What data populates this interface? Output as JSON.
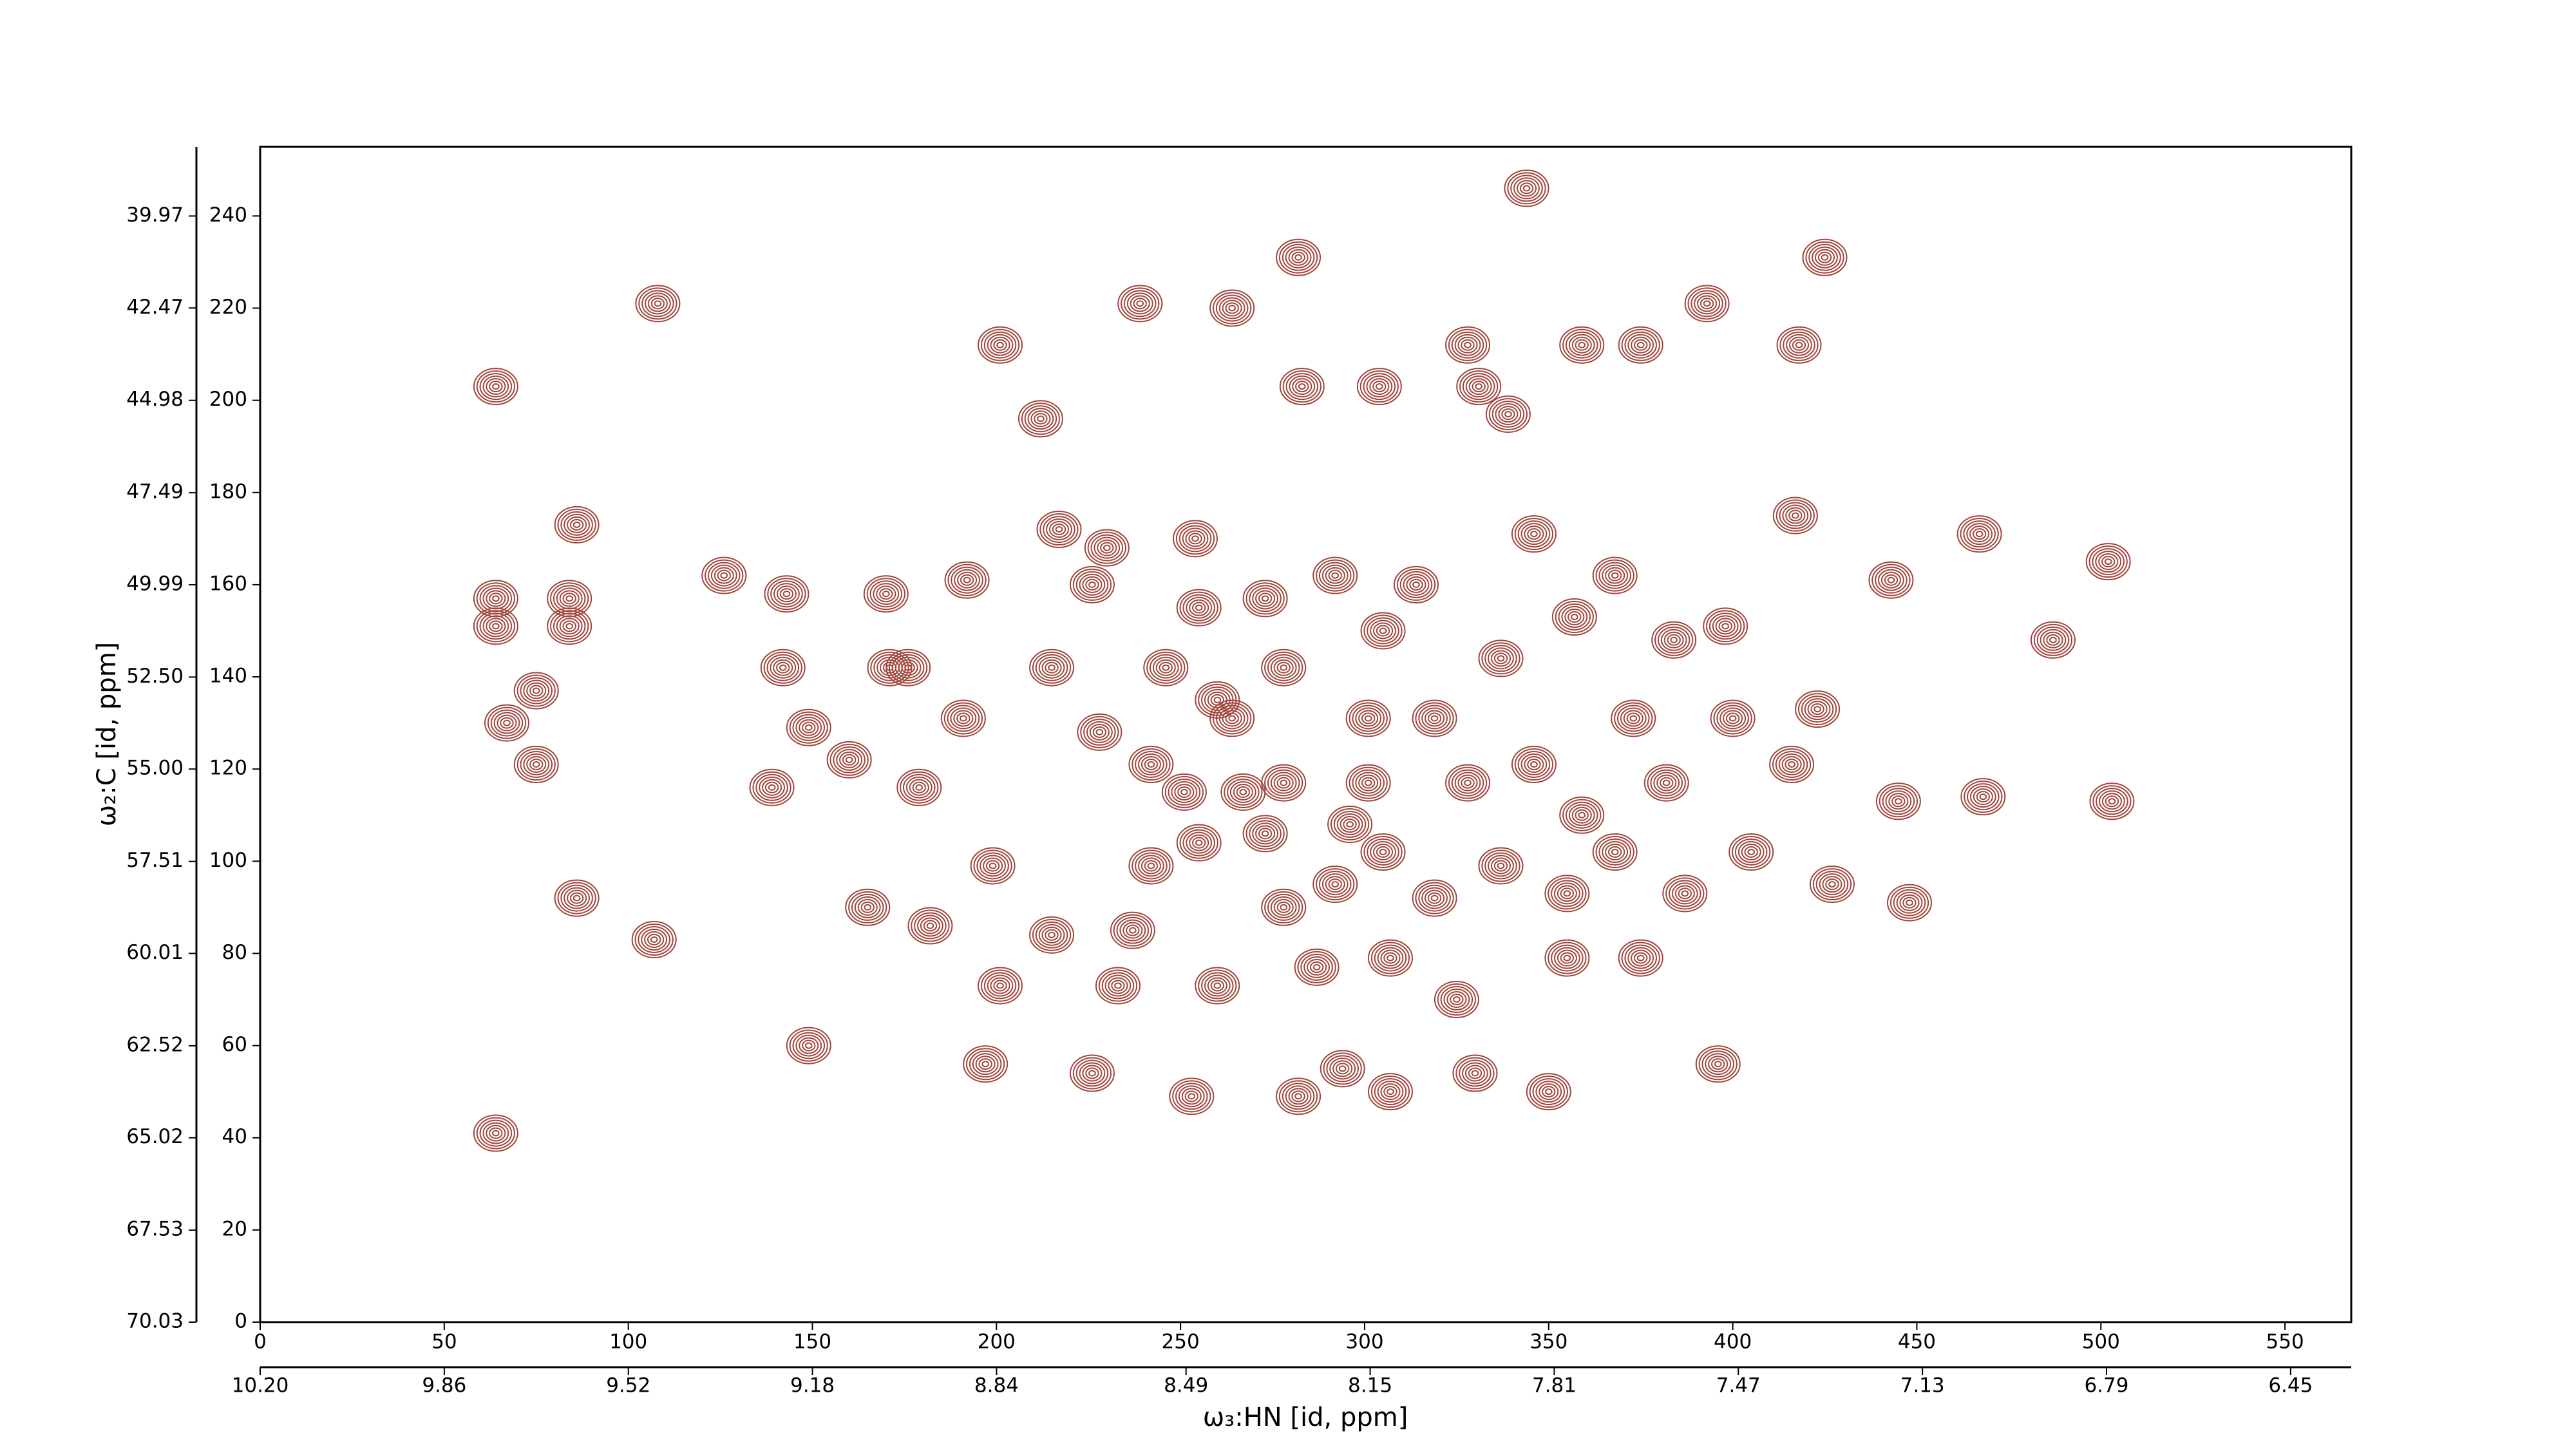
{
  "chart_data": {
    "type": "contour",
    "xlabel": "ω₃:HN [id, ppm]",
    "ylabel": "ω₂:C [id, ppm]",
    "xlim": [
      0,
      568
    ],
    "ylim": [
      0,
      255
    ],
    "xticks": [
      0,
      50,
      100,
      150,
      200,
      250,
      300,
      350,
      400,
      450,
      500,
      550
    ],
    "yticks": [
      0,
      20,
      40,
      60,
      80,
      100,
      120,
      140,
      160,
      180,
      200,
      220,
      240
    ],
    "x2lim": [
      10.2,
      6.338
    ],
    "x2ticks": [
      {
        "value": 10.2,
        "label": "10.20"
      },
      9.86,
      9.52,
      9.18,
      8.84,
      8.49,
      8.15,
      7.81,
      7.47,
      7.13,
      6.79,
      6.45
    ],
    "y2lim": [
      70.03,
      38.09
    ],
    "y2ticks": [
      70.03,
      67.53,
      65.02,
      62.52,
      60.01,
      57.51,
      {
        "value": 55,
        "label": "55.00"
      },
      {
        "value": 52.5,
        "label": "52.50"
      },
      49.99,
      47.49,
      44.98,
      42.47,
      39.97
    ],
    "color": "#a0463c",
    "x": [
      64,
      108,
      86,
      64,
      84,
      64,
      84,
      75,
      67,
      75,
      86,
      107,
      64,
      126,
      143,
      142,
      149,
      139,
      149,
      170,
      171,
      160,
      176,
      179,
      191,
      165,
      182,
      199,
      201,
      212,
      192,
      217,
      215,
      230,
      226,
      215,
      201,
      197,
      226,
      237,
      253,
      242,
      254,
      255,
      239,
      264,
      282,
      283,
      304,
      328,
      331,
      339,
      344,
      359,
      375,
      393,
      418,
      417,
      425,
      443,
      467,
      487,
      502,
      503,
      468,
      445,
      427,
      448,
      423,
      416,
      400,
      398,
      384,
      368,
      357,
      346,
      405,
      396,
      387,
      375,
      368,
      355,
      350,
      355,
      330,
      325,
      307,
      307,
      282,
      294,
      287,
      278,
      292,
      273,
      255,
      251,
      264,
      278,
      292,
      305,
      319,
      328,
      346,
      359,
      337,
      319,
      305,
      260,
      267,
      242,
      228,
      246,
      273,
      314,
      337,
      373,
      382,
      278,
      301,
      260,
      301,
      233,
      296
    ],
    "y": [
      203,
      221,
      173,
      157,
      157,
      151,
      151,
      137,
      130,
      121,
      92,
      83,
      41,
      162,
      158,
      142,
      129,
      116,
      60,
      158,
      142,
      122,
      142,
      116,
      131,
      90,
      86,
      99,
      212,
      196,
      161,
      172,
      142,
      168,
      160,
      84,
      73,
      56,
      54,
      85,
      49,
      99,
      170,
      155,
      221,
      220,
      231,
      203,
      203,
      212,
      203,
      197,
      246,
      212,
      212,
      221,
      212,
      175,
      231,
      161,
      171,
      148,
      165,
      113,
      114,
      113,
      95,
      91,
      133,
      121,
      131,
      151,
      148,
      162,
      153,
      171,
      102,
      56,
      93,
      79,
      102,
      93,
      50,
      79,
      54,
      70,
      50,
      79,
      49,
      55,
      77,
      90,
      95,
      106,
      104,
      115,
      131,
      142,
      162,
      150,
      131,
      117,
      121,
      110,
      99,
      92,
      102,
      73,
      115,
      121,
      128,
      142,
      157,
      160,
      144,
      131,
      117,
      117,
      117,
      135,
      131,
      73,
      108
    ]
  }
}
